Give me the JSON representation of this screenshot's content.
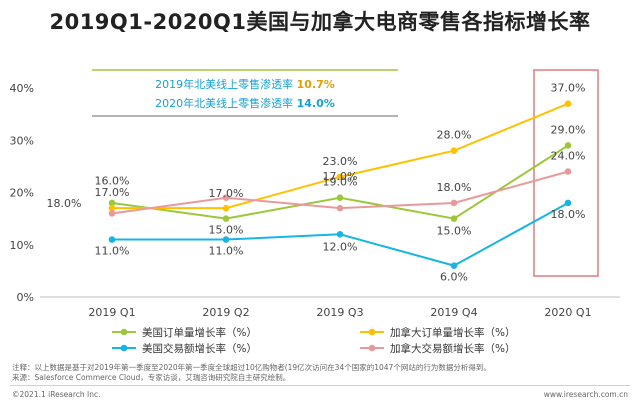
{
  "title": "2019Q1-2020Q1美国与加拿大电商零售各指标增长率",
  "colors": {
    "us_orders": "#9dc73a",
    "ca_orders": "#ffc000",
    "us_gmv": "#17b4e6",
    "ca_gmv": "#e89a9a",
    "highlight_box": "#e07b7b",
    "axis_text": "#444444"
  },
  "info_box": {
    "line1_prefix": "2019年北美线上零售渗透率 ",
    "line1_value": "10.7%",
    "line2_prefix": "2020年北美线上零售渗透率 ",
    "line2_value": "14.0%"
  },
  "chart_data": {
    "type": "line",
    "categories": [
      "2019 Q1",
      "2019 Q2",
      "2019 Q3",
      "2019 Q4",
      "2020 Q1"
    ],
    "y_tick_labels": [
      "0%",
      "10%",
      "20%",
      "30%",
      "40%"
    ],
    "ylim": [
      0,
      40
    ],
    "grid": false,
    "legend_position": "bottom",
    "series": [
      {
        "key": "us_orders",
        "name": "美国订单量增长率（%）",
        "values": [
          18.0,
          15.0,
          19.0,
          15.0,
          29.0
        ],
        "labels": [
          "18.0%",
          "15.0%",
          "19.0%",
          "15.0%",
          "29.0%"
        ]
      },
      {
        "key": "ca_orders",
        "name": "加拿大订单量增长率（%）",
        "values": [
          17.0,
          17.0,
          23.0,
          28.0,
          37.0
        ],
        "labels": [
          "17.0%",
          "17.0%",
          "23.0%",
          "28.0%",
          "37.0%"
        ]
      },
      {
        "key": "us_gmv",
        "name": "美国交易额增长率（%）",
        "values": [
          11.0,
          11.0,
          12.0,
          6.0,
          18.0
        ],
        "labels": [
          "11.0%",
          "11.0%",
          "12.0%",
          "6.0%",
          "18.0%"
        ]
      },
      {
        "key": "ca_gmv",
        "name": "加拿大交易额增长率（%）",
        "values": [
          16.0,
          19.0,
          17.0,
          18.0,
          24.0
        ],
        "labels": [
          "16.0%",
          "",
          "17.0%",
          "18.0%",
          "24.0%"
        ]
      }
    ]
  },
  "notes": {
    "line1": "注释：以上数据是基于对2019年第一季度至2020年第一季度全球超过10亿购物者(19亿次访问在34个国家的1047个网站的行为数据分析得到。",
    "line2": "来源：Salesforce Commerce Cloud，专家访谈，艾瑞咨询研究院自主研究绘制。"
  },
  "footer": {
    "left": "©2021.1 iResearch Inc.",
    "right": "www.iresearch.com.cn"
  }
}
